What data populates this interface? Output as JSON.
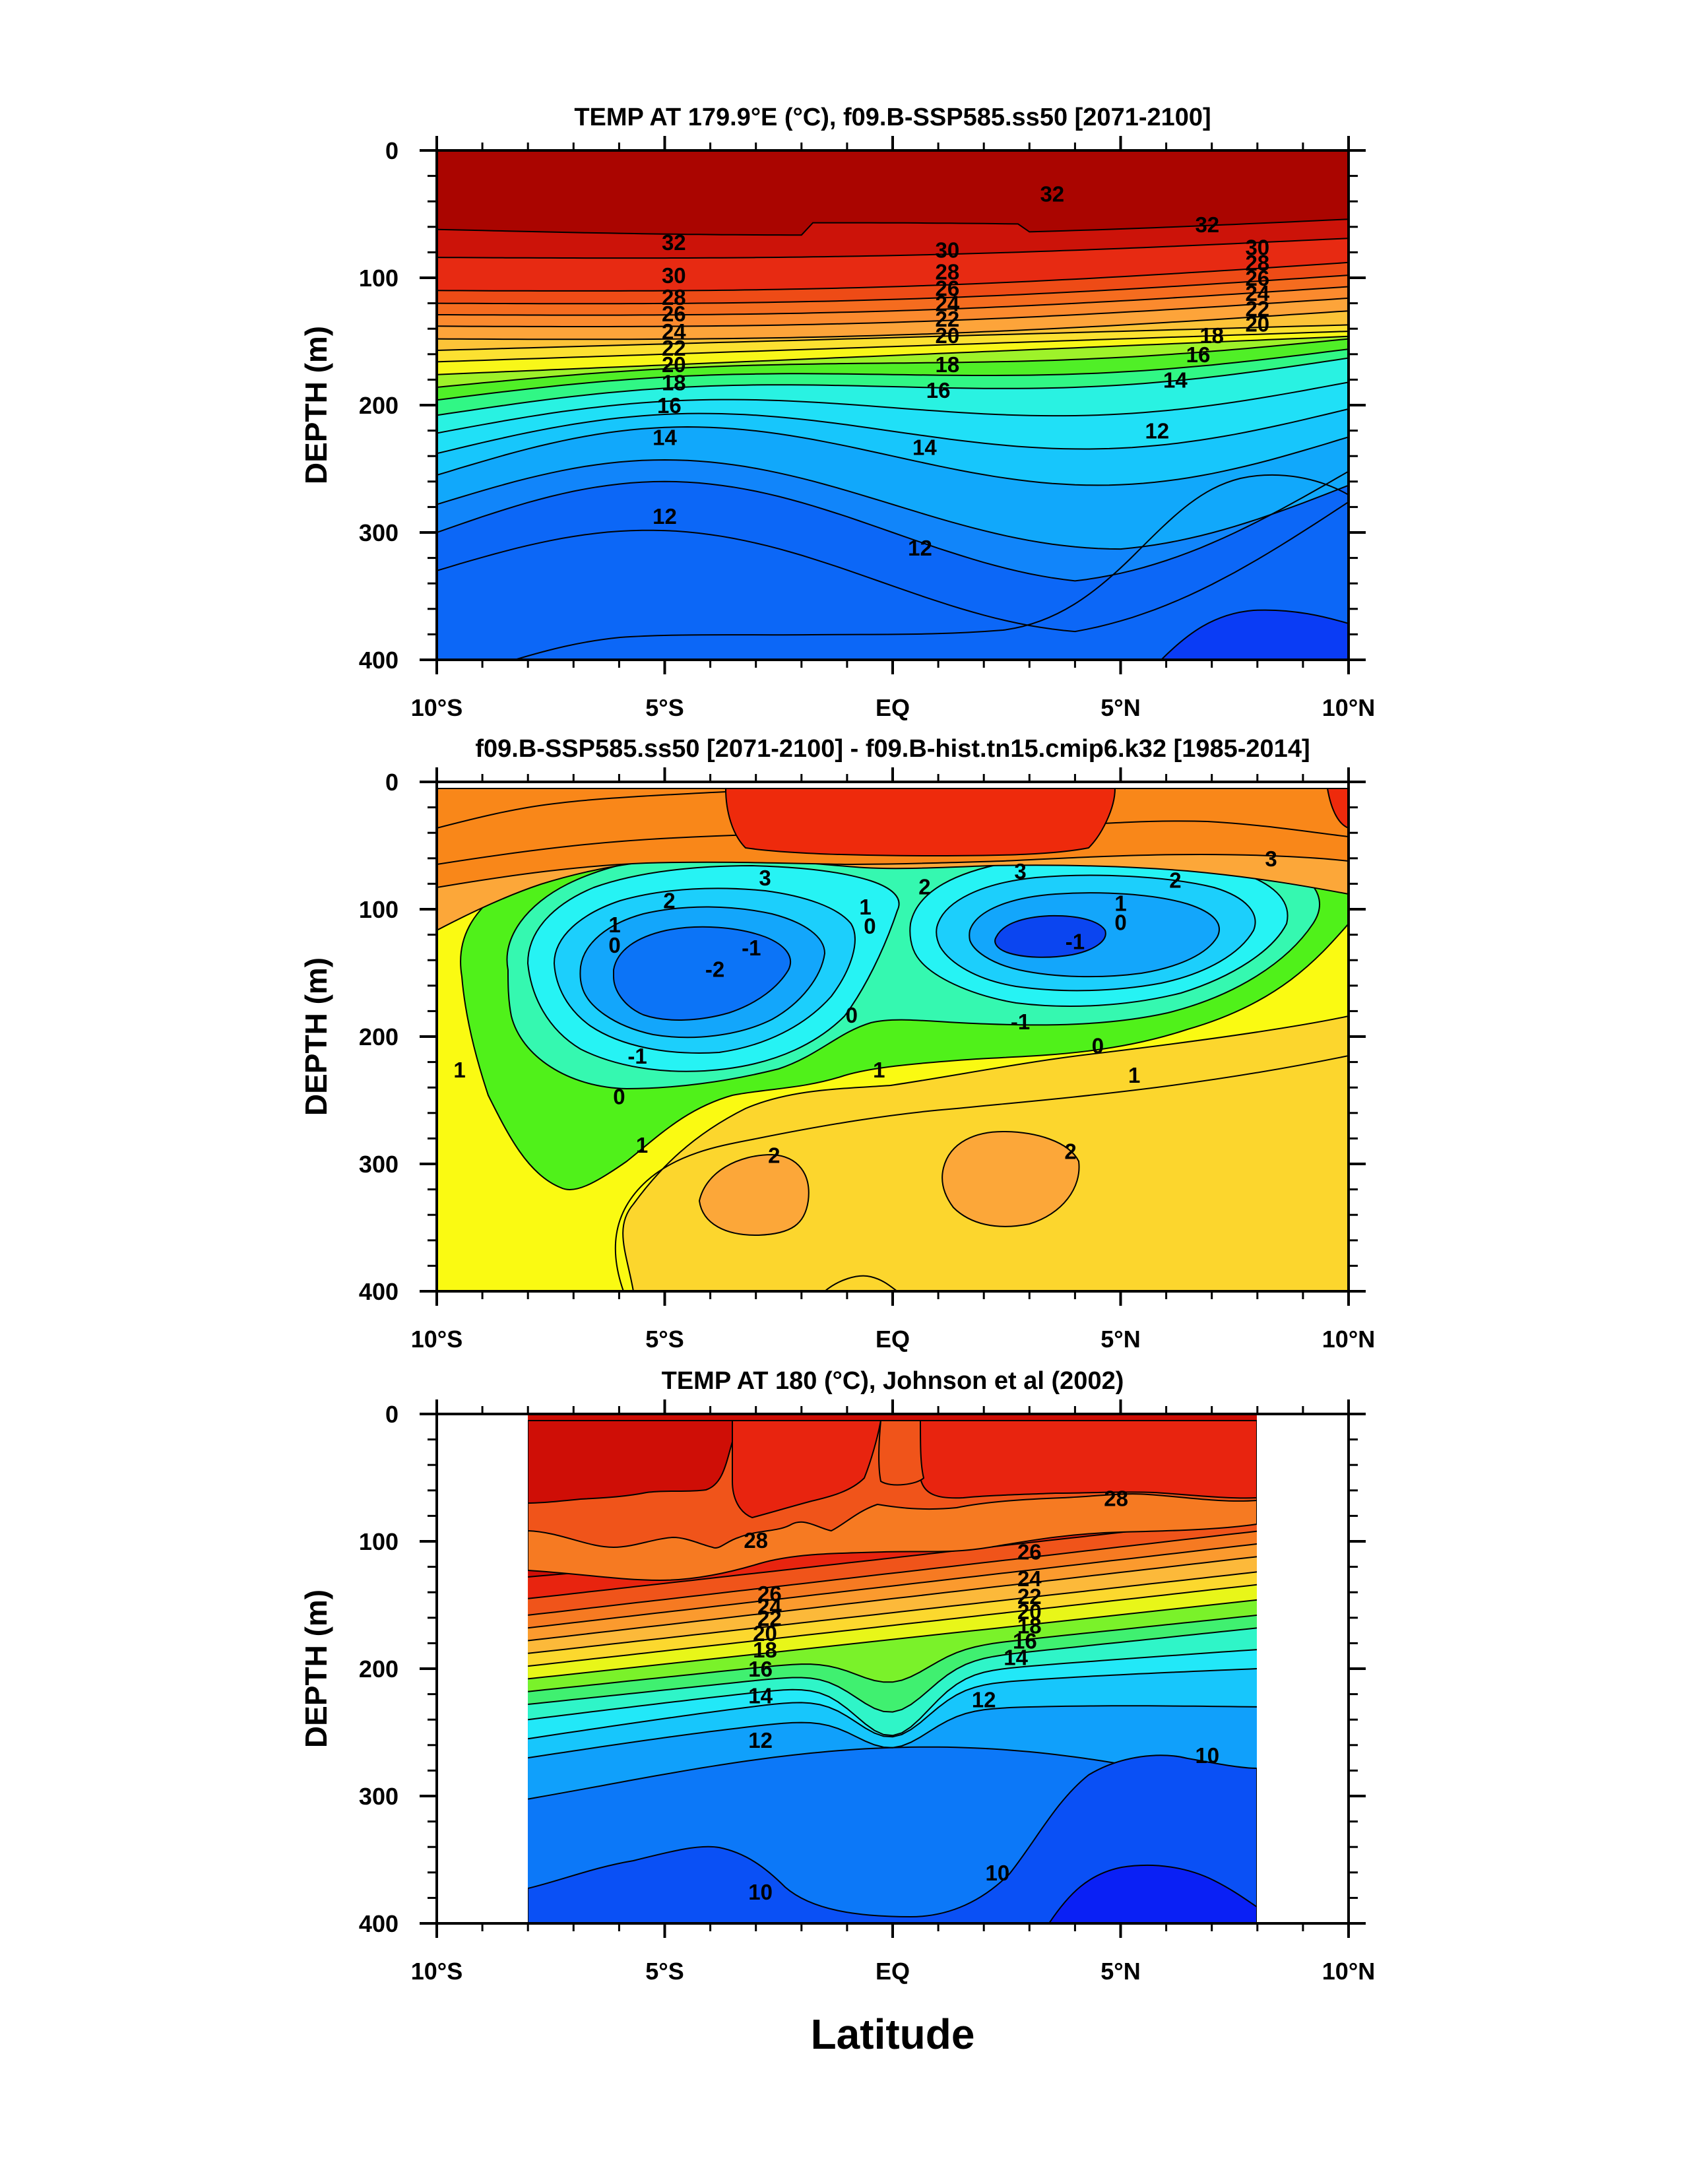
{
  "x_axis_title": "Latitude",
  "chart_data": [
    {
      "type": "heatmap",
      "subtype": "filled-contour depth-latitude section",
      "title": "TEMP AT 179.9°E (°C), f09.B-SSP585.ss50 [2071-2100]",
      "ylabel": "DEPTH (m)",
      "xlabel": "Latitude",
      "x_ticks": [
        "10°S",
        "5°S",
        "EQ",
        "5°N",
        "10°N"
      ],
      "x_tick_values": [
        -10,
        -5,
        0,
        5,
        10
      ],
      "y_ticks": [
        "0",
        "100",
        "200",
        "300",
        "400"
      ],
      "y_tick_values": [
        0,
        100,
        200,
        300,
        400
      ],
      "xlim": [
        -10,
        10
      ],
      "ylim": [
        0,
        400
      ],
      "y_reversed": true,
      "data_extent_x": [
        -10,
        10
      ],
      "data_extent_y": [
        5,
        400
      ],
      "colors": [
        "#0a3cf5",
        "#0c67f7",
        "#1185fa",
        "#11a8fb",
        "#17c6fc",
        "#20e0f7",
        "#29f2e2",
        "#31f785",
        "#50ef27",
        "#9ef22a",
        "#f8f719",
        "#fce131",
        "#fcc338",
        "#fda43a",
        "#fb8a2e",
        "#f56c1f",
        "#ee4b16",
        "#e72a12",
        "#cc1309",
        "#aa0500"
      ],
      "color_levels": [
        9,
        10,
        11,
        12,
        13,
        14,
        15,
        16,
        17,
        18,
        19,
        20,
        22,
        24,
        26,
        28,
        30,
        31,
        32
      ],
      "contour_labels": [
        {
          "text": "32",
          "lat": 3.5,
          "depth": 34
        },
        {
          "text": "32",
          "lat": -4.8,
          "depth": 72
        },
        {
          "text": "32",
          "lat": 6.9,
          "depth": 58
        },
        {
          "text": "30",
          "lat": -4.8,
          "depth": 98
        },
        {
          "text": "30",
          "lat": 1.2,
          "depth": 78
        },
        {
          "text": "30",
          "lat": 8.0,
          "depth": 76
        },
        {
          "text": "28",
          "lat": -4.8,
          "depth": 115
        },
        {
          "text": "28",
          "lat": 1.2,
          "depth": 95
        },
        {
          "text": "28",
          "lat": 8.0,
          "depth": 88
        },
        {
          "text": "26",
          "lat": -4.8,
          "depth": 128
        },
        {
          "text": "26",
          "lat": 1.2,
          "depth": 108
        },
        {
          "text": "26",
          "lat": 8.0,
          "depth": 100
        },
        {
          "text": "24",
          "lat": -4.8,
          "depth": 142
        },
        {
          "text": "24",
          "lat": 1.2,
          "depth": 120
        },
        {
          "text": "24",
          "lat": 8.0,
          "depth": 112
        },
        {
          "text": "22",
          "lat": -4.8,
          "depth": 155
        },
        {
          "text": "22",
          "lat": 1.2,
          "depth": 132
        },
        {
          "text": "22",
          "lat": 8.0,
          "depth": 124
        },
        {
          "text": "20",
          "lat": -4.8,
          "depth": 168
        },
        {
          "text": "20",
          "lat": 1.2,
          "depth": 145
        },
        {
          "text": "20",
          "lat": 8.0,
          "depth": 136
        },
        {
          "text": "18",
          "lat": -4.8,
          "depth": 182
        },
        {
          "text": "18",
          "lat": 1.2,
          "depth": 168
        },
        {
          "text": "18",
          "lat": 7.0,
          "depth": 145
        },
        {
          "text": "16",
          "lat": -4.9,
          "depth": 200
        },
        {
          "text": "16",
          "lat": 1.0,
          "depth": 188
        },
        {
          "text": "16",
          "lat": 6.7,
          "depth": 160
        },
        {
          "text": "14",
          "lat": -5.0,
          "depth": 225
        },
        {
          "text": "14",
          "lat": 0.7,
          "depth": 233
        },
        {
          "text": "14",
          "lat": 6.2,
          "depth": 180
        },
        {
          "text": "12",
          "lat": -5.0,
          "depth": 287
        },
        {
          "text": "12",
          "lat": 0.6,
          "depth": 312
        },
        {
          "text": "12",
          "lat": 5.8,
          "depth": 220
        }
      ]
    },
    {
      "type": "heatmap",
      "subtype": "filled-contour depth-latitude difference section",
      "title": "f09.B-SSP585.ss50 [2071-2100] - f09.B-hist.tn15.cmip6.k32 [1985-2014]",
      "ylabel": "DEPTH (m)",
      "xlabel": "Latitude",
      "x_ticks": [
        "10°S",
        "5°S",
        "EQ",
        "5°N",
        "10°N"
      ],
      "x_tick_values": [
        -10,
        -5,
        0,
        5,
        10
      ],
      "y_ticks": [
        "0",
        "100",
        "200",
        "300",
        "400"
      ],
      "y_tick_values": [
        0,
        100,
        200,
        300,
        400
      ],
      "xlim": [
        -10,
        10
      ],
      "ylim": [
        0,
        400
      ],
      "y_reversed": true,
      "data_extent_x": [
        -10,
        10
      ],
      "data_extent_y": [
        5,
        400
      ],
      "colors": [
        "#0b45f0",
        "#0c74f7",
        "#13a6fb",
        "#1ccffc",
        "#26f3f4",
        "#35f8b0",
        "#50f11a",
        "#fafa12",
        "#fcd62d",
        "#fca739",
        "#f98719",
        "#ee2a0c"
      ],
      "color_levels": [
        -2.5,
        -2,
        -1.5,
        -1,
        -0.5,
        0,
        0.5,
        1,
        2,
        2.5,
        3.5
      ],
      "contour_labels": [
        {
          "text": "3",
          "lat": -2.8,
          "depth": 75
        },
        {
          "text": "3",
          "lat": 2.8,
          "depth": 70
        },
        {
          "text": "3",
          "lat": 8.3,
          "depth": 60
        },
        {
          "text": "2",
          "lat": -4.9,
          "depth": 93
        },
        {
          "text": "2",
          "lat": 0.7,
          "depth": 82
        },
        {
          "text": "2",
          "lat": 6.2,
          "depth": 77
        },
        {
          "text": "1",
          "lat": -6.1,
          "depth": 112
        },
        {
          "text": "1",
          "lat": -0.6,
          "depth": 98
        },
        {
          "text": "1",
          "lat": 5.0,
          "depth": 95
        },
        {
          "text": "0",
          "lat": -6.1,
          "depth": 128
        },
        {
          "text": "0",
          "lat": -0.5,
          "depth": 113
        },
        {
          "text": "0",
          "lat": 5.0,
          "depth": 110
        },
        {
          "text": "-1",
          "lat": -3.1,
          "depth": 130
        },
        {
          "text": "-1",
          "lat": 4.0,
          "depth": 125
        },
        {
          "text": "-2",
          "lat": -3.9,
          "depth": 147
        },
        {
          "text": "0",
          "lat": -0.9,
          "depth": 183
        },
        {
          "text": "-1",
          "lat": 2.8,
          "depth": 188
        },
        {
          "text": "0",
          "lat": 4.5,
          "depth": 207
        },
        {
          "text": "-1",
          "lat": -5.6,
          "depth": 215
        },
        {
          "text": "0",
          "lat": -6.0,
          "depth": 247
        },
        {
          "text": "1",
          "lat": -0.3,
          "depth": 226
        },
        {
          "text": "1",
          "lat": 5.3,
          "depth": 230
        },
        {
          "text": "1",
          "lat": -9.5,
          "depth": 226
        },
        {
          "text": "1",
          "lat": -5.5,
          "depth": 285
        },
        {
          "text": "2",
          "lat": -2.6,
          "depth": 293
        },
        {
          "text": "2",
          "lat": 3.9,
          "depth": 290
        }
      ]
    },
    {
      "type": "heatmap",
      "subtype": "filled-contour depth-latitude section (observations)",
      "title": "TEMP AT 180 (°C), Johnson et al (2002)",
      "ylabel": "DEPTH (m)",
      "xlabel": "Latitude",
      "x_ticks": [
        "10°S",
        "5°S",
        "EQ",
        "5°N",
        "10°N"
      ],
      "x_tick_values": [
        -10,
        -5,
        0,
        5,
        10
      ],
      "y_ticks": [
        "0",
        "100",
        "200",
        "300",
        "400"
      ],
      "y_tick_values": [
        0,
        100,
        200,
        300,
        400
      ],
      "xlim": [
        -10,
        10
      ],
      "ylim": [
        0,
        400
      ],
      "y_reversed": true,
      "data_extent_x": [
        -8,
        8
      ],
      "data_extent_y": [
        5,
        400
      ],
      "colors": [
        "#0a20f5",
        "#0a50f5",
        "#0c78f8",
        "#10a0fb",
        "#17c6fc",
        "#22e8f8",
        "#2ff5c8",
        "#40f070",
        "#7af22a",
        "#e8f619",
        "#fcd82e",
        "#fcb93a",
        "#fb9a2e",
        "#f67a22",
        "#f0541a",
        "#e8240f",
        "#cf0e06"
      ],
      "color_levels": [
        9,
        9.5,
        10,
        11,
        12,
        13,
        14,
        15,
        16,
        17,
        18,
        20,
        22,
        24,
        26,
        28,
        29
      ],
      "contour_labels": [
        {
          "text": "28",
          "lat": 4.9,
          "depth": 66
        },
        {
          "text": "28",
          "lat": -3.0,
          "depth": 99
        },
        {
          "text": "26",
          "lat": 3.0,
          "depth": 108
        },
        {
          "text": "26",
          "lat": -2.7,
          "depth": 141
        },
        {
          "text": "24",
          "lat": 3.0,
          "depth": 129
        },
        {
          "text": "24",
          "lat": -2.7,
          "depth": 151
        },
        {
          "text": "22",
          "lat": 3.0,
          "depth": 143
        },
        {
          "text": "22",
          "lat": -2.7,
          "depth": 160
        },
        {
          "text": "20",
          "lat": 3.0,
          "depth": 155
        },
        {
          "text": "20",
          "lat": -2.8,
          "depth": 172
        },
        {
          "text": "18",
          "lat": 3.0,
          "depth": 166
        },
        {
          "text": "18",
          "lat": -2.8,
          "depth": 185
        },
        {
          "text": "16",
          "lat": 2.9,
          "depth": 178
        },
        {
          "text": "16",
          "lat": -2.9,
          "depth": 200
        },
        {
          "text": "14",
          "lat": 2.7,
          "depth": 191
        },
        {
          "text": "14",
          "lat": -2.9,
          "depth": 221
        },
        {
          "text": "12",
          "lat": 2.0,
          "depth": 224
        },
        {
          "text": "12",
          "lat": -2.9,
          "depth": 256
        },
        {
          "text": "10",
          "lat": 6.9,
          "depth": 268
        },
        {
          "text": "10",
          "lat": -2.9,
          "depth": 375
        },
        {
          "text": "10",
          "lat": 2.3,
          "depth": 360
        }
      ]
    }
  ]
}
